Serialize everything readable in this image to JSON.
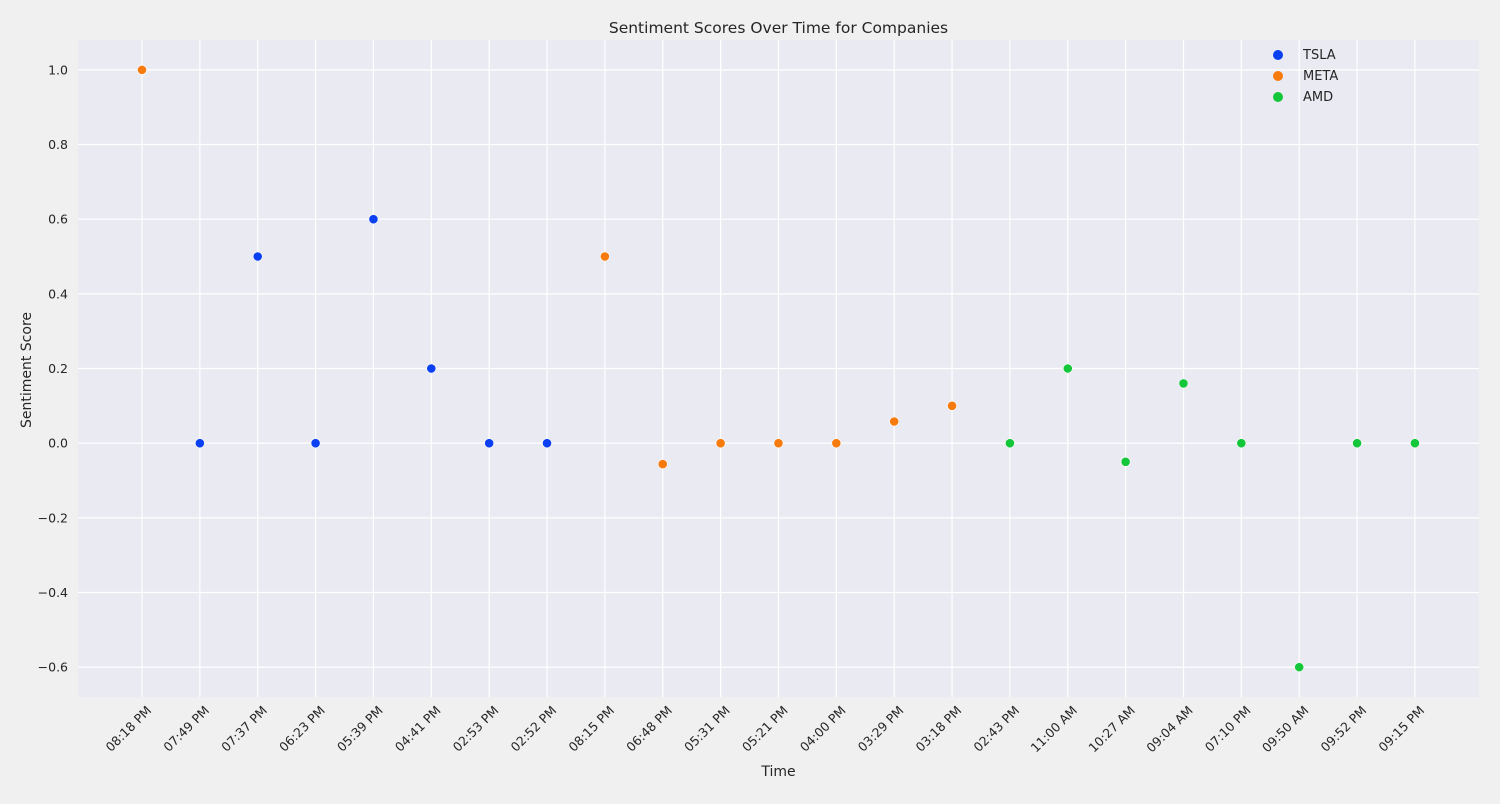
{
  "chart_data": {
    "type": "scatter",
    "title": "Sentiment Scores Over Time for Companies",
    "xlabel": "Time",
    "ylabel": "Sentiment Score",
    "categories": [
      "08:18 PM",
      "07:49 PM",
      "07:37 PM",
      "06:23 PM",
      "05:39 PM",
      "04:41 PM",
      "02:53 PM",
      "02:52 PM",
      "08:15 PM",
      "06:48 PM",
      "05:31 PM",
      "05:21 PM",
      "04:00 PM",
      "03:29 PM",
      "03:18 PM",
      "02:43 PM",
      "11:00 AM",
      "10:27 AM",
      "09:04 AM",
      "07:10 PM",
      "09:50 AM",
      "09:52 PM",
      "09:15 PM"
    ],
    "yticks": [
      "1.0",
      "0.8",
      "0.6",
      "0.4",
      "0.2",
      "0.0",
      "−0.2",
      "−0.4",
      "−0.6"
    ],
    "ylim": [
      -0.68,
      1.08
    ],
    "grid": true,
    "legend_position": "top-right",
    "series": [
      {
        "name": "TSLA",
        "color": "#0a3ff2",
        "x": [
          "07:49 PM",
          "07:37 PM",
          "06:23 PM",
          "05:39 PM",
          "04:41 PM",
          "02:53 PM",
          "02:52 PM"
        ],
        "y": [
          0.0,
          0.5,
          0.0,
          0.6,
          0.2,
          0.0,
          0.0
        ]
      },
      {
        "name": "META",
        "color": "#f77a0c",
        "x": [
          "08:18 PM",
          "08:15 PM",
          "06:48 PM",
          "05:31 PM",
          "05:21 PM",
          "04:00 PM",
          "03:29 PM",
          "03:18 PM"
        ],
        "y": [
          1.0,
          0.5,
          -0.056,
          0.0,
          0.0,
          0.0,
          0.058,
          0.1
        ]
      },
      {
        "name": "AMD",
        "color": "#14c73a",
        "x": [
          "02:43 PM",
          "11:00 AM",
          "10:27 AM",
          "09:04 AM",
          "07:10 PM",
          "09:50 AM",
          "09:52 PM",
          "09:15 PM"
        ],
        "y": [
          0.0,
          0.2,
          -0.05,
          0.16,
          0.0,
          -0.6,
          0.0,
          0.0
        ]
      }
    ]
  }
}
